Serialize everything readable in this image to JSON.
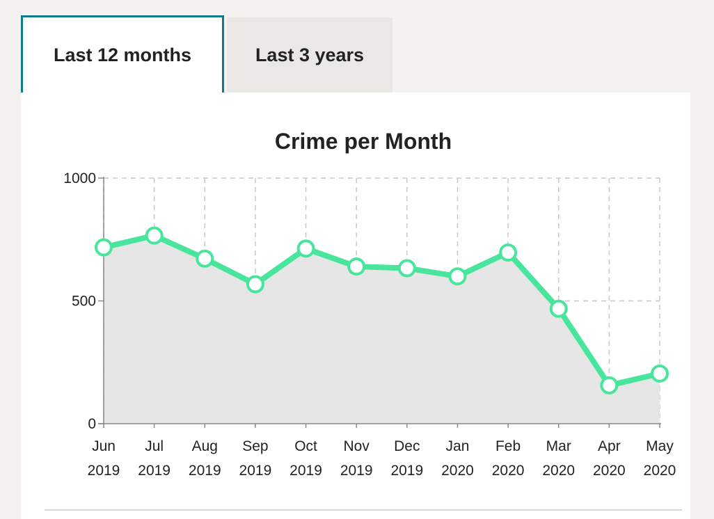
{
  "tabs": [
    {
      "label": "Last 12 months",
      "active": true
    },
    {
      "label": "Last 3 years",
      "active": false
    }
  ],
  "colors": {
    "accent": "#0f7a8f",
    "line": "#47e69c",
    "area": "#e6e6e6",
    "grid": "#c8c8c8"
  },
  "chart_data": {
    "type": "area",
    "title": "Crime per Month",
    "xlabel": "",
    "ylabel": "",
    "ylim": [
      0,
      1000
    ],
    "yticks": [
      "0",
      "500",
      "1000"
    ],
    "ytick_values": [
      0,
      500,
      1000
    ],
    "categories": [
      [
        "Jun",
        "2019"
      ],
      [
        "Jul",
        "2019"
      ],
      [
        "Aug",
        "2019"
      ],
      [
        "Sep",
        "2019"
      ],
      [
        "Oct",
        "2019"
      ],
      [
        "Nov",
        "2019"
      ],
      [
        "Dec",
        "2019"
      ],
      [
        "Jan",
        "2020"
      ],
      [
        "Feb",
        "2020"
      ],
      [
        "Mar",
        "2020"
      ],
      [
        "Apr",
        "2020"
      ],
      [
        "May",
        "2020"
      ]
    ],
    "series": [
      {
        "values": [
          718,
          766,
          672,
          568,
          713,
          640,
          633,
          600,
          697,
          468,
          156,
          204
        ]
      }
    ],
    "grid": true,
    "legend": "none"
  }
}
